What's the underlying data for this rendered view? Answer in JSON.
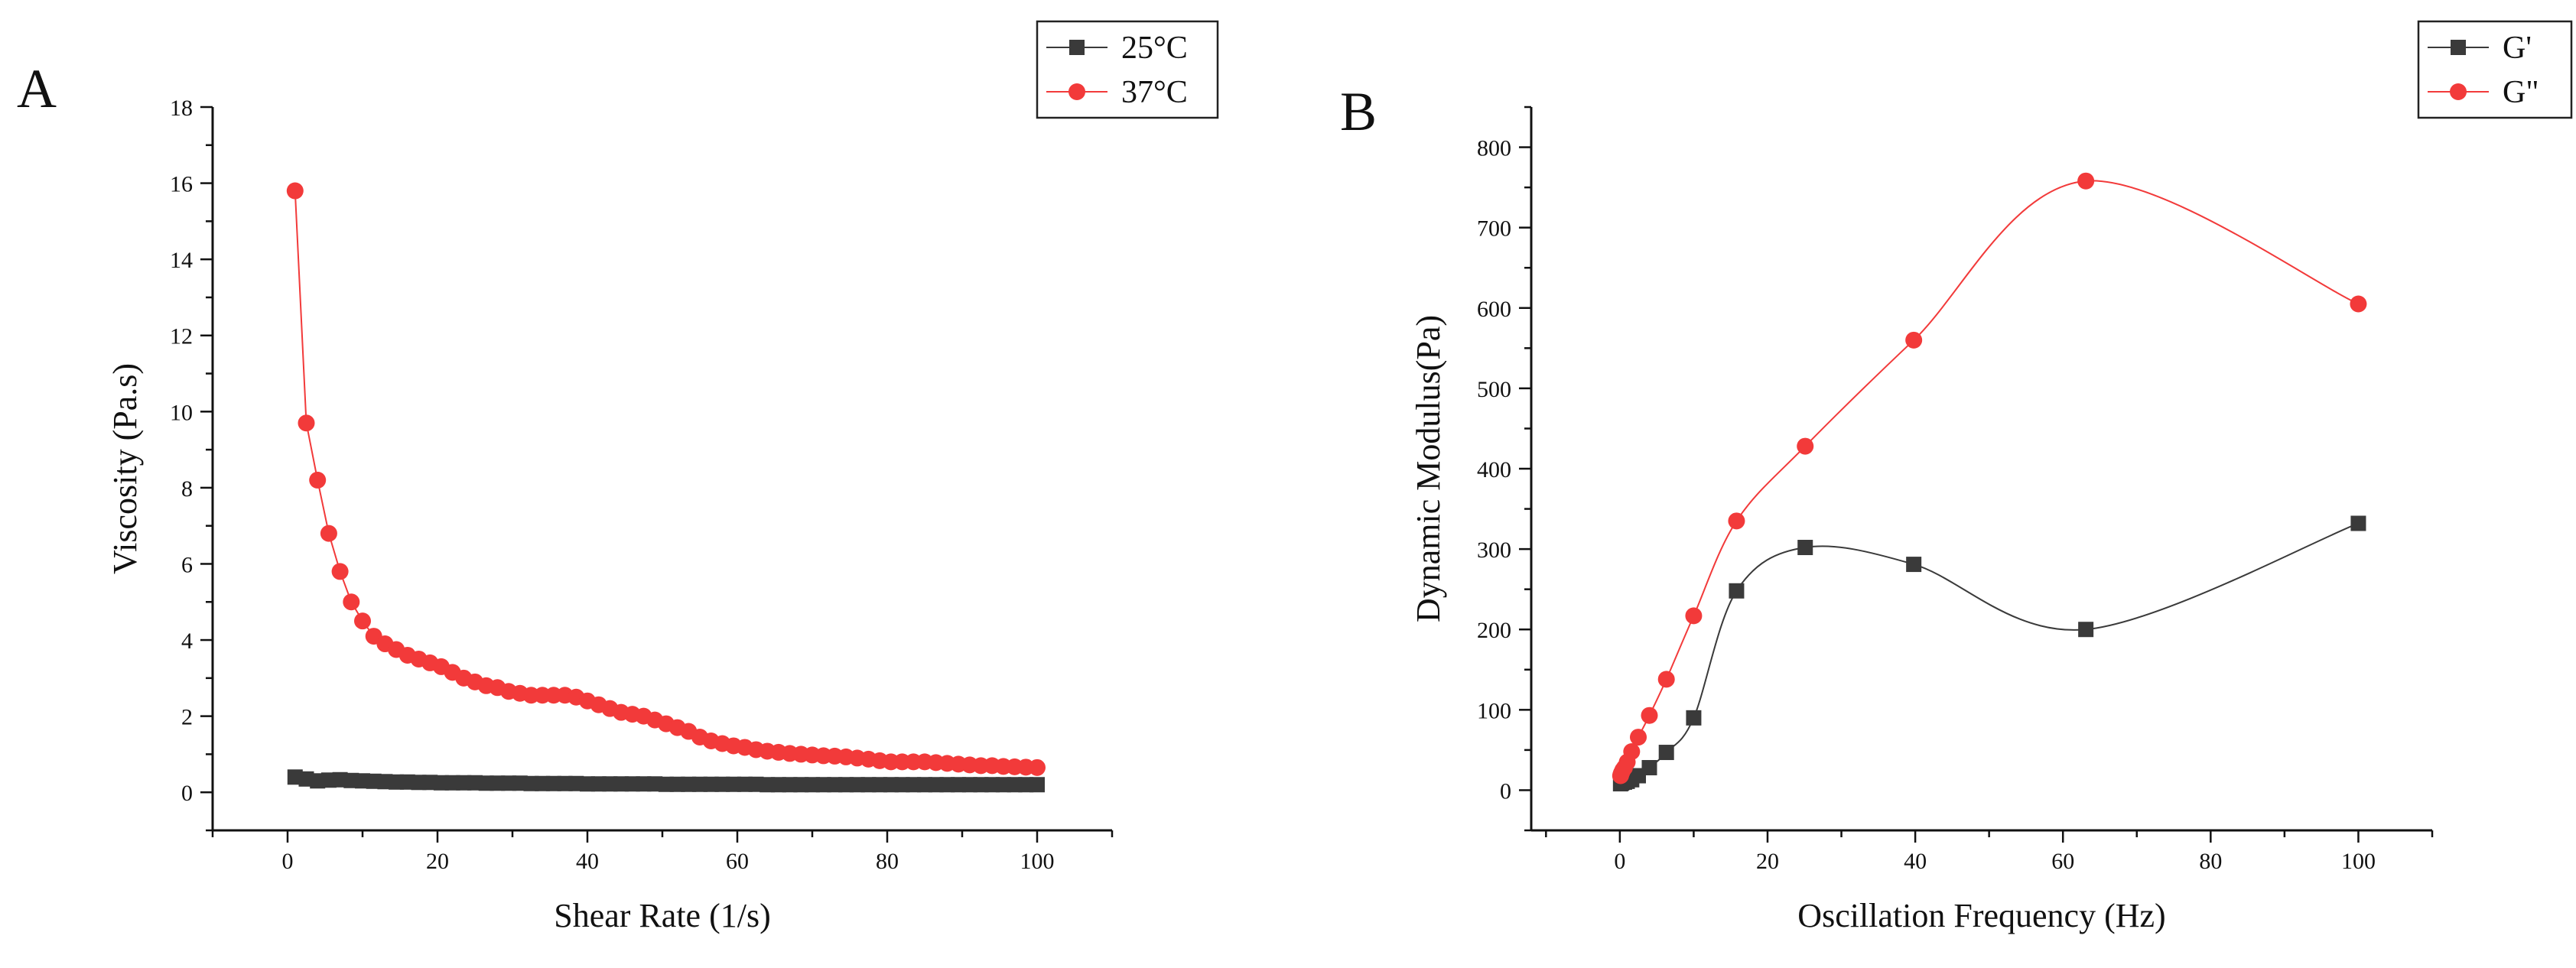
{
  "figure_title": "",
  "colors": {
    "series_dark": "#3a3a3a",
    "series_red": "#f23a3a",
    "axis": "#111111"
  },
  "chart_data": [
    {
      "panel": "A",
      "type": "line",
      "title": "",
      "xlabel": "Shear Rate (1/s)",
      "ylabel": "Viscosity (Pa.s)",
      "xlim": [
        -10,
        110
      ],
      "ylim": [
        -1,
        18
      ],
      "xticks": [
        0,
        20,
        40,
        60,
        80,
        100
      ],
      "yticks": [
        0,
        2,
        4,
        6,
        8,
        10,
        12,
        14,
        16,
        18
      ],
      "grid": false,
      "legend_position": "top-right",
      "series": [
        {
          "name": "25°C",
          "marker": "square",
          "color": "#3a3a3a",
          "smooth": false,
          "x": [
            1,
            2.5,
            4,
            5.5,
            7,
            8.5,
            10,
            11.5,
            13,
            14.5,
            16,
            17.5,
            19,
            20.5,
            22,
            23.5,
            25,
            26.5,
            28,
            29.5,
            31,
            32.5,
            34,
            35.5,
            37,
            38.5,
            40,
            41.5,
            43,
            44.5,
            46,
            47.5,
            49,
            50.5,
            52,
            53.5,
            55,
            56.5,
            58,
            59.5,
            61,
            62.5,
            64,
            65.5,
            67,
            68.5,
            70,
            71.5,
            73,
            74.5,
            76,
            77.5,
            79,
            80.5,
            82,
            83.5,
            85,
            86.5,
            88,
            89.5,
            91,
            92.5,
            94,
            95.5,
            97,
            98.5,
            100
          ],
          "y": [
            0.4,
            0.35,
            0.3,
            0.32,
            0.33,
            0.31,
            0.3,
            0.29,
            0.28,
            0.27,
            0.27,
            0.26,
            0.26,
            0.25,
            0.25,
            0.25,
            0.25,
            0.24,
            0.24,
            0.24,
            0.24,
            0.23,
            0.23,
            0.23,
            0.23,
            0.23,
            0.22,
            0.22,
            0.22,
            0.22,
            0.22,
            0.22,
            0.22,
            0.21,
            0.21,
            0.21,
            0.21,
            0.21,
            0.21,
            0.21,
            0.21,
            0.21,
            0.2,
            0.2,
            0.2,
            0.2,
            0.2,
            0.2,
            0.2,
            0.2,
            0.2,
            0.2,
            0.2,
            0.2,
            0.2,
            0.2,
            0.2,
            0.2,
            0.2,
            0.2,
            0.2,
            0.2,
            0.2,
            0.2,
            0.2,
            0.2,
            0.2
          ]
        },
        {
          "name": "37°C",
          "marker": "circle",
          "color": "#f23a3a",
          "smooth": false,
          "x": [
            1,
            2.5,
            4,
            5.5,
            7,
            8.5,
            10,
            11.5,
            13,
            14.5,
            16,
            17.5,
            19,
            20.5,
            22,
            23.5,
            25,
            26.5,
            28,
            29.5,
            31,
            32.5,
            34,
            35.5,
            37,
            38.5,
            40,
            41.5,
            43,
            44.5,
            46,
            47.5,
            49,
            50.5,
            52,
            53.5,
            55,
            56.5,
            58,
            59.5,
            61,
            62.5,
            64,
            65.5,
            67,
            68.5,
            70,
            71.5,
            73,
            74.5,
            76,
            77.5,
            79,
            80.5,
            82,
            83.5,
            85,
            86.5,
            88,
            89.5,
            91,
            92.5,
            94,
            95.5,
            97,
            98.5,
            100
          ],
          "y": [
            15.8,
            9.7,
            8.2,
            6.8,
            5.8,
            5.0,
            4.5,
            4.1,
            3.9,
            3.75,
            3.6,
            3.5,
            3.4,
            3.3,
            3.15,
            3.0,
            2.9,
            2.8,
            2.75,
            2.65,
            2.6,
            2.55,
            2.55,
            2.55,
            2.55,
            2.5,
            2.4,
            2.3,
            2.2,
            2.1,
            2.05,
            2.0,
            1.9,
            1.8,
            1.7,
            1.6,
            1.45,
            1.35,
            1.28,
            1.22,
            1.18,
            1.12,
            1.08,
            1.05,
            1.02,
            1.0,
            0.98,
            0.96,
            0.95,
            0.93,
            0.9,
            0.87,
            0.83,
            0.8,
            0.8,
            0.8,
            0.8,
            0.78,
            0.76,
            0.74,
            0.72,
            0.7,
            0.7,
            0.68,
            0.67,
            0.66,
            0.65
          ]
        }
      ]
    },
    {
      "panel": "B",
      "type": "line",
      "title": "",
      "xlabel": "Oscillation Frequency (Hz)",
      "ylabel": "Dynamic Modulus(Pa)",
      "xlim": [
        -12,
        110
      ],
      "ylim": [
        -50,
        850
      ],
      "xticks": [
        0,
        20,
        40,
        60,
        80,
        100
      ],
      "yticks": [
        0,
        100,
        200,
        300,
        400,
        500,
        600,
        700,
        800
      ],
      "grid": false,
      "legend_position": "top-right",
      "series": [
        {
          "name": "G'",
          "marker": "square",
          "color": "#3a3a3a",
          "smooth": true,
          "x": [
            0.1,
            0.16,
            0.25,
            0.4,
            0.63,
            1.0,
            1.6,
            2.5,
            4.0,
            6.3,
            10,
            15.8,
            25.1,
            39.8,
            63.1,
            100
          ],
          "y": [
            8,
            9,
            9,
            10,
            10,
            11,
            13,
            18,
            28,
            47,
            90,
            248,
            302,
            281,
            200,
            332
          ]
        },
        {
          "name": "G\"",
          "marker": "circle",
          "color": "#f23a3a",
          "smooth": true,
          "x": [
            0.1,
            0.16,
            0.25,
            0.4,
            0.63,
            1.0,
            1.6,
            2.5,
            4.0,
            6.3,
            10,
            15.8,
            25.1,
            39.8,
            63.1,
            100
          ],
          "y": [
            18,
            20,
            22,
            25,
            28,
            35,
            48,
            66,
            93,
            138,
            217,
            335,
            428,
            560,
            758,
            605
          ]
        }
      ]
    }
  ]
}
